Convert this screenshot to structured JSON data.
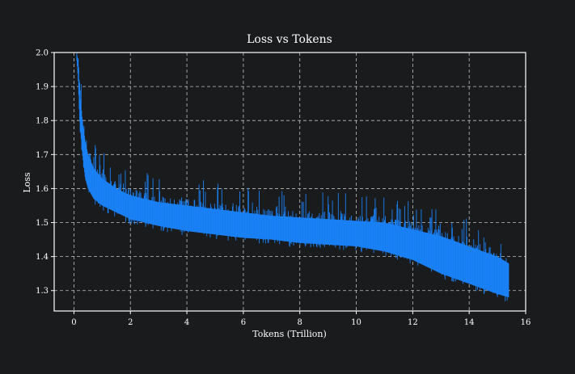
{
  "chart_data": {
    "type": "line",
    "title": "Loss vs Tokens",
    "xlabel": "Tokens (Trillion)",
    "ylabel": "Loss",
    "xlim": [
      -0.7,
      16
    ],
    "ylim": [
      1.24,
      2.0
    ],
    "x_ticks": [
      0,
      2,
      4,
      6,
      8,
      10,
      12,
      14,
      16
    ],
    "y_ticks": [
      1.3,
      1.4,
      1.5,
      1.6,
      1.7,
      1.8,
      1.9,
      2.0
    ],
    "x_tick_labels": [
      "0",
      "2",
      "4",
      "6",
      "8",
      "10",
      "12",
      "14",
      "16"
    ],
    "y_tick_labels": [
      "1.3",
      "1.4",
      "1.5",
      "1.6",
      "1.7",
      "1.8",
      "1.9",
      "2.0"
    ],
    "grid": true,
    "series": [
      {
        "color": "#1a80f5",
        "x": [
          0.1,
          0.15,
          0.2,
          0.3,
          0.4,
          0.5,
          0.7,
          1.0,
          1.5,
          2.0,
          3.0,
          4.0,
          5.0,
          6.0,
          7.0,
          8.0,
          9.0,
          10.0,
          11.0,
          12.0,
          13.0,
          14.0,
          15.0,
          15.4
        ],
        "y_upper": [
          2.0,
          1.97,
          1.9,
          1.8,
          1.74,
          1.7,
          1.66,
          1.63,
          1.6,
          1.58,
          1.56,
          1.55,
          1.54,
          1.53,
          1.52,
          1.515,
          1.51,
          1.505,
          1.5,
          1.48,
          1.46,
          1.43,
          1.4,
          1.38
        ],
        "y_lower": [
          1.98,
          1.92,
          1.8,
          1.7,
          1.63,
          1.6,
          1.57,
          1.55,
          1.53,
          1.51,
          1.49,
          1.475,
          1.465,
          1.455,
          1.45,
          1.44,
          1.435,
          1.43,
          1.415,
          1.39,
          1.35,
          1.32,
          1.29,
          1.28
        ]
      }
    ]
  }
}
